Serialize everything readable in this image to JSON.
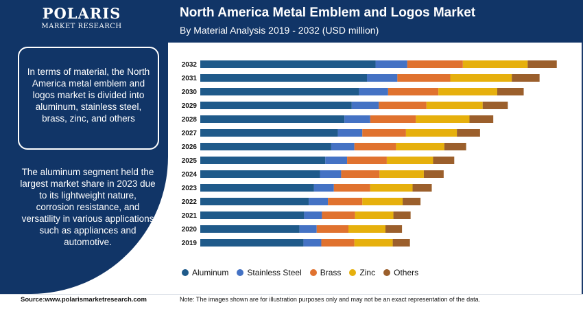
{
  "header": {
    "logo_name": "POLARIS",
    "logo_sub": "MARKET RESEARCH",
    "title": "North America Metal Emblem and Logos Market",
    "subtitle": "By Material Analysis 2019 - 2032 (USD million)"
  },
  "panel": {
    "text1": "In terms of material, the North America metal emblem and logos market is divided into aluminum, stainless steel, brass, zinc, and others",
    "text2": "The aluminum segment held the largest market share in 2023 due to its lightweight nature, corrosion resistance, and versatility in various applications such as appliances and automotive."
  },
  "footer": {
    "source": "Source:www.polarismarketresearch.com",
    "note": "Note: The images shown are for illustration purposes only and may not be an exact representation of the data."
  },
  "colors": {
    "header_bg": "#113567",
    "aluminum": "#1f5a8a",
    "stainless_steel": "#4472c4",
    "brass": "#e0722f",
    "zinc": "#e6b00d",
    "others": "#9b5f2c"
  },
  "chart_data": {
    "type": "bar",
    "orientation": "horizontal",
    "stacked": true,
    "categories": [
      "2032",
      "2031",
      "2030",
      "2029",
      "2028",
      "2027",
      "2026",
      "2025",
      "2024",
      "2023",
      "2022",
      "2021",
      "2020",
      "2019"
    ],
    "series": [
      {
        "name": "Aluminum",
        "color": "#1f5a8a",
        "values": [
          265,
          252,
          240,
          229,
          218,
          208,
          198,
          189,
          181,
          172,
          164,
          157,
          150,
          156
        ]
      },
      {
        "name": "Stainless Steel",
        "color": "#4472c4",
        "values": [
          48,
          46,
          44,
          41,
          39,
          37,
          35,
          33,
          32,
          30,
          29,
          27,
          26,
          27
        ]
      },
      {
        "name": "Brass",
        "color": "#e0722f",
        "values": [
          84,
          80,
          76,
          72,
          69,
          66,
          63,
          60,
          58,
          55,
          52,
          50,
          48,
          50
        ]
      },
      {
        "name": "Zinc",
        "color": "#e6b00d",
        "values": [
          98,
          93,
          89,
          85,
          81,
          77,
          73,
          70,
          67,
          64,
          61,
          58,
          56,
          58
        ]
      },
      {
        "name": "Others",
        "color": "#9b5f2c",
        "values": [
          44,
          42,
          40,
          38,
          36,
          35,
          33,
          32,
          30,
          29,
          27,
          26,
          25,
          26
        ]
      }
    ],
    "xlim": [
      0,
      560
    ],
    "grid": false,
    "legend_position": "bottom"
  }
}
